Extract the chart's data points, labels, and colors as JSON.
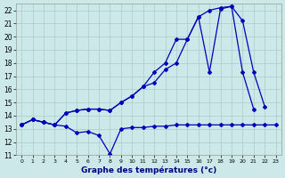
{
  "title": "Graphe des températures (°c)",
  "bg_color": "#cce8e8",
  "grid_color": "#aacccc",
  "line_color": "#0000bb",
  "xlim": [
    -0.5,
    23.5
  ],
  "ylim": [
    11,
    22.5
  ],
  "yticks": [
    11,
    12,
    13,
    14,
    15,
    16,
    17,
    18,
    19,
    20,
    21,
    22
  ],
  "xticks": [
    0,
    1,
    2,
    3,
    4,
    5,
    6,
    7,
    8,
    9,
    10,
    11,
    12,
    13,
    14,
    15,
    16,
    17,
    18,
    19,
    20,
    21,
    22,
    23
  ],
  "series1_x": [
    0,
    1,
    2,
    3,
    4,
    5,
    6,
    7,
    8,
    9,
    10,
    11,
    12,
    13,
    14,
    15,
    16,
    17,
    18,
    19,
    20,
    21,
    22,
    23
  ],
  "series1_y": [
    13.3,
    13.7,
    13.5,
    13.3,
    13.2,
    12.7,
    12.8,
    12.5,
    11.1,
    13.0,
    13.1,
    13.1,
    13.2,
    13.2,
    13.3,
    13.3,
    13.3,
    13.3,
    13.3,
    13.3,
    13.3,
    13.3,
    13.3,
    13.3
  ],
  "series2_x": [
    0,
    1,
    2,
    3,
    4,
    5,
    6,
    7,
    8,
    9,
    10,
    11,
    12,
    13,
    14,
    15,
    16,
    17,
    18,
    19,
    20,
    21,
    22
  ],
  "series2_y": [
    13.3,
    13.7,
    13.5,
    13.3,
    14.2,
    14.4,
    14.5,
    14.5,
    14.4,
    15.0,
    15.5,
    16.2,
    17.3,
    18.0,
    19.8,
    19.8,
    21.5,
    22.0,
    22.2,
    22.3,
    21.2,
    17.3,
    14.7
  ],
  "series3_x": [
    0,
    1,
    2,
    3,
    4,
    5,
    6,
    7,
    8,
    9,
    10,
    11,
    12,
    13,
    14,
    15,
    16,
    17,
    18,
    19,
    20,
    21
  ],
  "series3_y": [
    13.3,
    13.7,
    13.5,
    13.3,
    14.2,
    14.4,
    14.5,
    14.5,
    14.4,
    15.0,
    15.5,
    16.2,
    16.5,
    17.5,
    18.0,
    19.8,
    21.5,
    17.3,
    22.1,
    22.3,
    17.3,
    14.5
  ]
}
